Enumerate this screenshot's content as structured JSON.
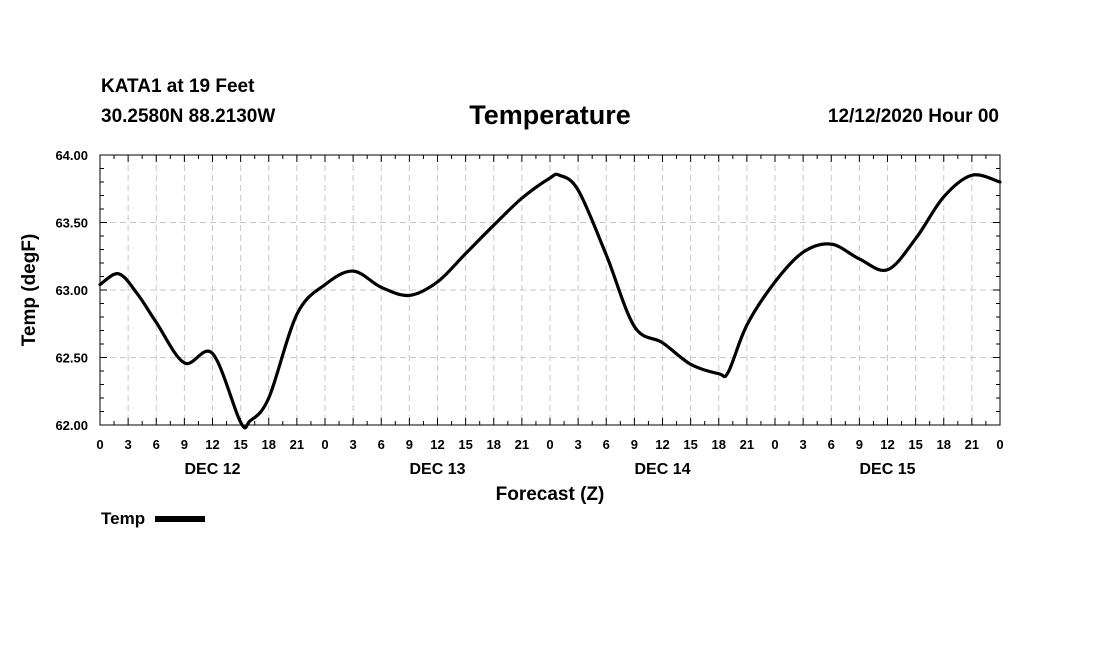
{
  "header": {
    "station": "KATA1 at 19 Feet",
    "coords": "30.2580N 88.2130W",
    "runtime": "12/12/2020 Hour 00"
  },
  "chart_data": {
    "type": "line",
    "title": "Temperature",
    "xlabel": "Forecast (Z)",
    "ylabel": "Temp (degF)",
    "ylim": [
      62.0,
      64.0
    ],
    "xlim_hours": [
      0,
      96
    ],
    "y_ticks": [
      "62.00",
      "62.50",
      "63.00",
      "63.50",
      "64.00"
    ],
    "x_tick_labels": [
      "0",
      "3",
      "6",
      "9",
      "12",
      "15",
      "18",
      "21",
      "0",
      "3",
      "6",
      "9",
      "12",
      "15",
      "18",
      "21",
      "0",
      "3",
      "6",
      "9",
      "12",
      "15",
      "18",
      "21",
      "0",
      "3",
      "6",
      "9",
      "12",
      "15",
      "18",
      "21",
      "0"
    ],
    "day_labels": [
      {
        "label": "DEC 12",
        "hour": 12
      },
      {
        "label": "DEC 13",
        "hour": 36
      },
      {
        "label": "DEC 14",
        "hour": 60
      },
      {
        "label": "DEC 15",
        "hour": 84
      }
    ],
    "grid": true,
    "series": [
      {
        "name": "Temp",
        "x_hours": [
          0,
          2,
          4,
          6,
          9,
          12,
          15,
          16,
          18,
          21,
          24,
          27,
          30,
          33,
          36,
          39,
          42,
          45,
          48,
          49,
          51,
          54,
          57,
          60,
          63,
          66,
          67,
          69,
          72,
          75,
          78,
          81,
          84,
          87,
          90,
          93,
          96
        ],
        "values": [
          63.04,
          63.12,
          62.97,
          62.76,
          62.46,
          62.53,
          62.02,
          62.03,
          62.2,
          62.82,
          63.04,
          63.14,
          63.02,
          62.96,
          63.06,
          63.27,
          63.48,
          63.68,
          63.83,
          63.85,
          63.74,
          63.26,
          62.73,
          62.61,
          62.45,
          62.38,
          62.39,
          62.74,
          63.06,
          63.28,
          63.34,
          63.23,
          63.15,
          63.38,
          63.69,
          63.85,
          63.8
        ]
      }
    ],
    "legend": [
      {
        "label": "Temp",
        "color": "#000000"
      }
    ]
  }
}
